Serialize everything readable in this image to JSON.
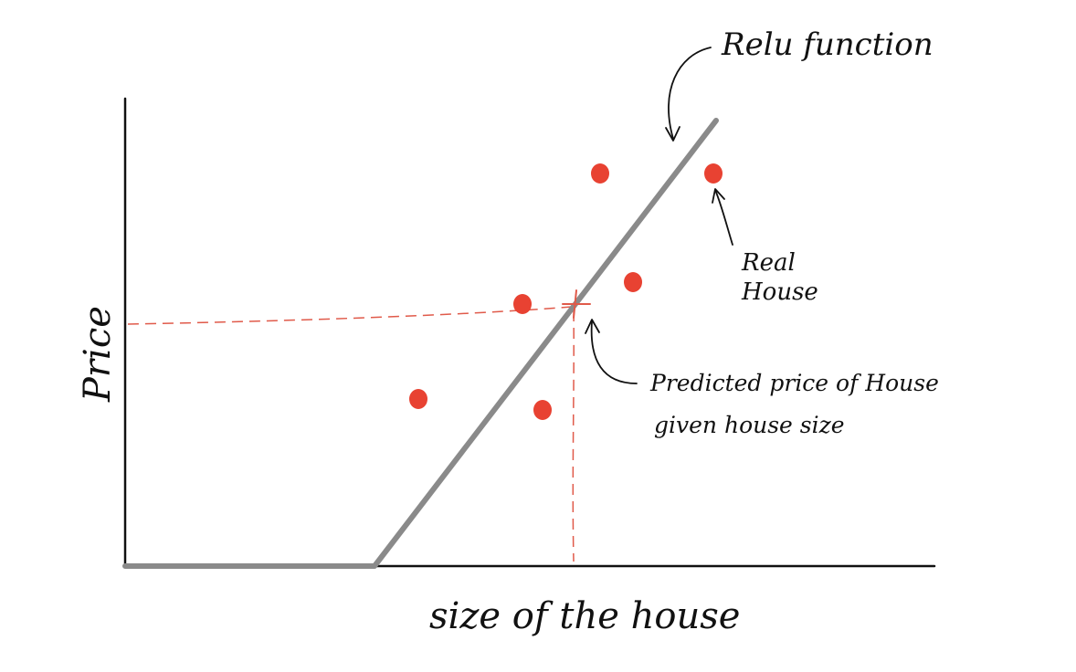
{
  "labels": {
    "y_axis": "Price",
    "x_axis": "size of the house",
    "relu": "Relu function",
    "real_line1": "Real",
    "real_line2": "House",
    "predicted_line1": "Predicted price of House",
    "predicted_line2": "given house size"
  },
  "colors": {
    "axis": "#111111",
    "relu_line": "#8a8a8a",
    "points": "#e84232",
    "dashed_guides": "#e05a4a"
  },
  "chart_data": {
    "type": "scatter",
    "title": "",
    "xlabel": "size of the house",
    "ylabel": "Price",
    "grid": false,
    "axis_ticks": false,
    "relu_curve": {
      "name": "Relu function",
      "shape": "relu"
    },
    "points_series": {
      "name": "Real House",
      "count": 6
    },
    "prediction_marker": {
      "name": "Predicted price of House given house size",
      "style": "cross with dashed guide lines to both axes"
    }
  }
}
